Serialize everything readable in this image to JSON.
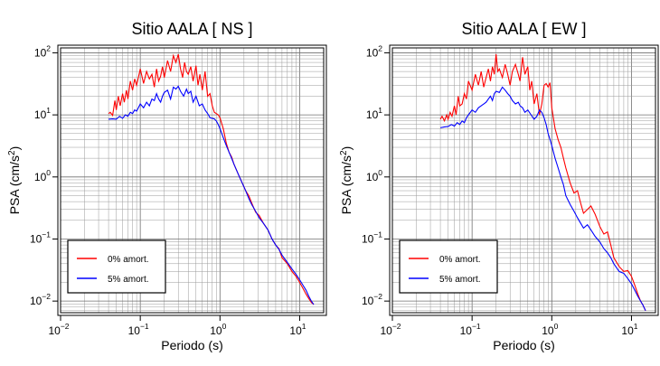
{
  "chart_data": [
    {
      "type": "line",
      "title": "Sitio AALA [ NS ]",
      "xlabel": "Periodo (s)",
      "ylabel_main": "PSA (cm/s",
      "ylabel_sup": "2",
      "ylabel_close": ")",
      "xscale": "log",
      "yscale": "log",
      "xlim": [
        0.01,
        20
      ],
      "ylim": [
        0.0065,
        120
      ],
      "xticks": [
        {
          "value": 0.01,
          "base": "10",
          "exp": "−2"
        },
        {
          "value": 0.1,
          "base": "10",
          "exp": "−1"
        },
        {
          "value": 1,
          "base": "10",
          "exp": "0"
        },
        {
          "value": 10,
          "base": "10",
          "exp": "1"
        }
      ],
      "yticks": [
        {
          "value": 0.01,
          "base": "10",
          "exp": "−2"
        },
        {
          "value": 0.1,
          "base": "10",
          "exp": "−1"
        },
        {
          "value": 1,
          "base": "10",
          "exp": "0"
        },
        {
          "value": 10,
          "base": "10",
          "exp": "1"
        },
        {
          "value": 100,
          "base": "10",
          "exp": "2"
        }
      ],
      "grid": true,
      "legend_position": "bottom-left",
      "series": [
        {
          "name": "0% amort.",
          "color": "#ff0000",
          "x": [
            0.04,
            0.042,
            0.045,
            0.048,
            0.05,
            0.053,
            0.056,
            0.06,
            0.063,
            0.067,
            0.07,
            0.075,
            0.08,
            0.085,
            0.09,
            0.1,
            0.11,
            0.12,
            0.13,
            0.14,
            0.15,
            0.16,
            0.17,
            0.18,
            0.19,
            0.2,
            0.21,
            0.22,
            0.24,
            0.26,
            0.28,
            0.3,
            0.32,
            0.34,
            0.36,
            0.38,
            0.4,
            0.43,
            0.46,
            0.5,
            0.53,
            0.56,
            0.6,
            0.65,
            0.7,
            0.75,
            0.8,
            0.85,
            0.9,
            0.95,
            1.0,
            1.1,
            1.2,
            1.3,
            1.4,
            1.5,
            1.7,
            1.9,
            2.1,
            2.3,
            2.5,
            2.8,
            3.1,
            3.5,
            4.0,
            4.5,
            5.0,
            5.5,
            6.0,
            7.0,
            8.0,
            9.0,
            10.0,
            11.0,
            12.0,
            13.0,
            14.0,
            15.0
          ],
          "y": [
            10.5,
            11,
            9.8,
            17,
            12,
            20,
            14,
            22,
            16,
            25,
            18,
            35,
            25,
            38,
            30,
            55,
            32,
            50,
            38,
            45,
            28,
            55,
            35,
            42,
            60,
            40,
            55,
            75,
            50,
            90,
            70,
            95,
            55,
            40,
            70,
            50,
            45,
            60,
            35,
            62,
            30,
            45,
            25,
            50,
            20,
            22,
            14,
            11,
            10.5,
            10,
            9,
            6,
            3.5,
            2.5,
            2.1,
            1.6,
            1.1,
            0.8,
            0.6,
            0.5,
            0.38,
            0.27,
            0.24,
            0.18,
            0.14,
            0.1,
            0.08,
            0.07,
            0.05,
            0.04,
            0.03,
            0.025,
            0.02,
            0.016,
            0.013,
            0.011,
            0.0095,
            0.0088
          ]
        },
        {
          "name": "5% amort.",
          "color": "#0000ff",
          "x": [
            0.04,
            0.045,
            0.05,
            0.055,
            0.06,
            0.065,
            0.07,
            0.075,
            0.08,
            0.085,
            0.09,
            0.1,
            0.11,
            0.12,
            0.13,
            0.14,
            0.15,
            0.16,
            0.17,
            0.18,
            0.19,
            0.2,
            0.22,
            0.24,
            0.26,
            0.28,
            0.3,
            0.32,
            0.35,
            0.38,
            0.4,
            0.43,
            0.46,
            0.5,
            0.55,
            0.6,
            0.65,
            0.7,
            0.75,
            0.8,
            0.85,
            0.9,
            0.95,
            1.0,
            1.1,
            1.2,
            1.3,
            1.4,
            1.5,
            1.7,
            1.9,
            2.1,
            2.3,
            2.5,
            2.8,
            3.1,
            3.5,
            4.0,
            4.5,
            5.0,
            5.5,
            6.0,
            7.0,
            8.0,
            9.0,
            10.0,
            11.0,
            12.0,
            13.0,
            14.0,
            15.0
          ],
          "y": [
            8.5,
            8.6,
            8.5,
            9.5,
            8.8,
            10,
            9.5,
            11,
            10.5,
            12,
            11.5,
            15,
            13,
            16,
            14,
            18,
            17,
            22,
            18,
            16,
            20,
            23,
            25,
            18,
            28,
            26,
            29,
            24,
            20,
            26,
            22,
            24,
            16,
            20,
            14,
            15,
            12,
            10.5,
            9,
            8.8,
            8.6,
            8,
            7,
            6,
            4.3,
            3.2,
            2.5,
            2,
            1.6,
            1.1,
            0.8,
            0.6,
            0.45,
            0.36,
            0.28,
            0.22,
            0.18,
            0.14,
            0.1,
            0.08,
            0.068,
            0.055,
            0.042,
            0.033,
            0.027,
            0.022,
            0.018,
            0.015,
            0.012,
            0.01,
            0.0088
          ]
        }
      ]
    },
    {
      "type": "line",
      "title": "Sitio AALA [ EW ]",
      "xlabel": "Periodo (s)",
      "ylabel_main": "PSA (cm/s",
      "ylabel_sup": "2",
      "ylabel_close": ")",
      "xscale": "log",
      "yscale": "log",
      "xlim": [
        0.01,
        20
      ],
      "ylim": [
        0.0065,
        120
      ],
      "xticks": [
        {
          "value": 0.01,
          "base": "10",
          "exp": "−2"
        },
        {
          "value": 0.1,
          "base": "10",
          "exp": "−1"
        },
        {
          "value": 1,
          "base": "10",
          "exp": "0"
        },
        {
          "value": 10,
          "base": "10",
          "exp": "1"
        }
      ],
      "yticks": [
        {
          "value": 0.01,
          "base": "10",
          "exp": "−2"
        },
        {
          "value": 0.1,
          "base": "10",
          "exp": "−1"
        },
        {
          "value": 1,
          "base": "10",
          "exp": "0"
        },
        {
          "value": 10,
          "base": "10",
          "exp": "1"
        },
        {
          "value": 100,
          "base": "10",
          "exp": "2"
        }
      ],
      "grid": true,
      "legend_position": "bottom-left",
      "series": [
        {
          "name": "0% amort.",
          "color": "#ff0000",
          "x": [
            0.04,
            0.042,
            0.045,
            0.048,
            0.05,
            0.053,
            0.056,
            0.06,
            0.063,
            0.067,
            0.07,
            0.075,
            0.08,
            0.085,
            0.09,
            0.1,
            0.11,
            0.12,
            0.13,
            0.14,
            0.15,
            0.16,
            0.17,
            0.18,
            0.19,
            0.2,
            0.21,
            0.22,
            0.24,
            0.26,
            0.28,
            0.3,
            0.32,
            0.35,
            0.38,
            0.4,
            0.43,
            0.46,
            0.5,
            0.53,
            0.56,
            0.6,
            0.65,
            0.7,
            0.75,
            0.8,
            0.85,
            0.9,
            0.95,
            1.0,
            1.1,
            1.2,
            1.3,
            1.4,
            1.5,
            1.6,
            1.7,
            1.9,
            2.1,
            2.3,
            2.5,
            2.8,
            3.1,
            3.5,
            4.0,
            4.5,
            5.0,
            5.5,
            6.0,
            7.0,
            8.0,
            9.0,
            10.0,
            11.0,
            12.0,
            13.0,
            14.0,
            15.0
          ],
          "y": [
            8.5,
            9.5,
            8,
            10,
            8.5,
            11,
            9.5,
            14,
            10,
            20,
            14,
            15,
            22,
            18,
            35,
            25,
            45,
            30,
            50,
            28,
            40,
            55,
            35,
            60,
            45,
            95,
            50,
            55,
            40,
            65,
            45,
            30,
            50,
            65,
            45,
            35,
            85,
            45,
            60,
            25,
            35,
            15,
            22,
            10,
            15,
            30,
            32,
            28,
            33,
            13,
            6,
            4,
            3,
            2,
            1.4,
            1.05,
            0.8,
            0.55,
            0.6,
            0.38,
            0.26,
            0.3,
            0.34,
            0.25,
            0.16,
            0.12,
            0.13,
            0.08,
            0.05,
            0.036,
            0.03,
            0.031,
            0.025,
            0.018,
            0.013,
            0.01,
            0.0085,
            0.007
          ]
        },
        {
          "name": "5% amort.",
          "color": "#0000ff",
          "x": [
            0.04,
            0.045,
            0.05,
            0.055,
            0.06,
            0.065,
            0.07,
            0.075,
            0.08,
            0.085,
            0.09,
            0.1,
            0.11,
            0.12,
            0.13,
            0.14,
            0.15,
            0.16,
            0.17,
            0.18,
            0.19,
            0.2,
            0.22,
            0.24,
            0.26,
            0.28,
            0.3,
            0.32,
            0.35,
            0.38,
            0.4,
            0.43,
            0.46,
            0.5,
            0.55,
            0.6,
            0.65,
            0.7,
            0.75,
            0.8,
            0.85,
            0.9,
            0.95,
            1.0,
            1.1,
            1.2,
            1.3,
            1.4,
            1.5,
            1.7,
            1.9,
            2.1,
            2.3,
            2.5,
            2.8,
            3.1,
            3.5,
            4.0,
            4.5,
            5.0,
            5.5,
            6.0,
            7.0,
            8.0,
            9.0,
            10.0,
            11.0,
            12.0,
            13.0,
            14.0,
            15.0
          ],
          "y": [
            6.2,
            6.4,
            6.5,
            7,
            6.6,
            7.5,
            7,
            8,
            7.5,
            9,
            10,
            12,
            11,
            13,
            14,
            15,
            16,
            18,
            20,
            17,
            22,
            24,
            23,
            28,
            25,
            22,
            20,
            17,
            15,
            16,
            14,
            13,
            11,
            12,
            10,
            8.5,
            9.5,
            12,
            11,
            9,
            7,
            5,
            4,
            3.2,
            2,
            1.4,
            1,
            0.75,
            0.5,
            0.36,
            0.28,
            0.22,
            0.18,
            0.15,
            0.17,
            0.14,
            0.11,
            0.09,
            0.07,
            0.06,
            0.05,
            0.04,
            0.03,
            0.028,
            0.023,
            0.019,
            0.015,
            0.012,
            0.01,
            0.0085,
            0.007
          ]
        }
      ]
    }
  ]
}
